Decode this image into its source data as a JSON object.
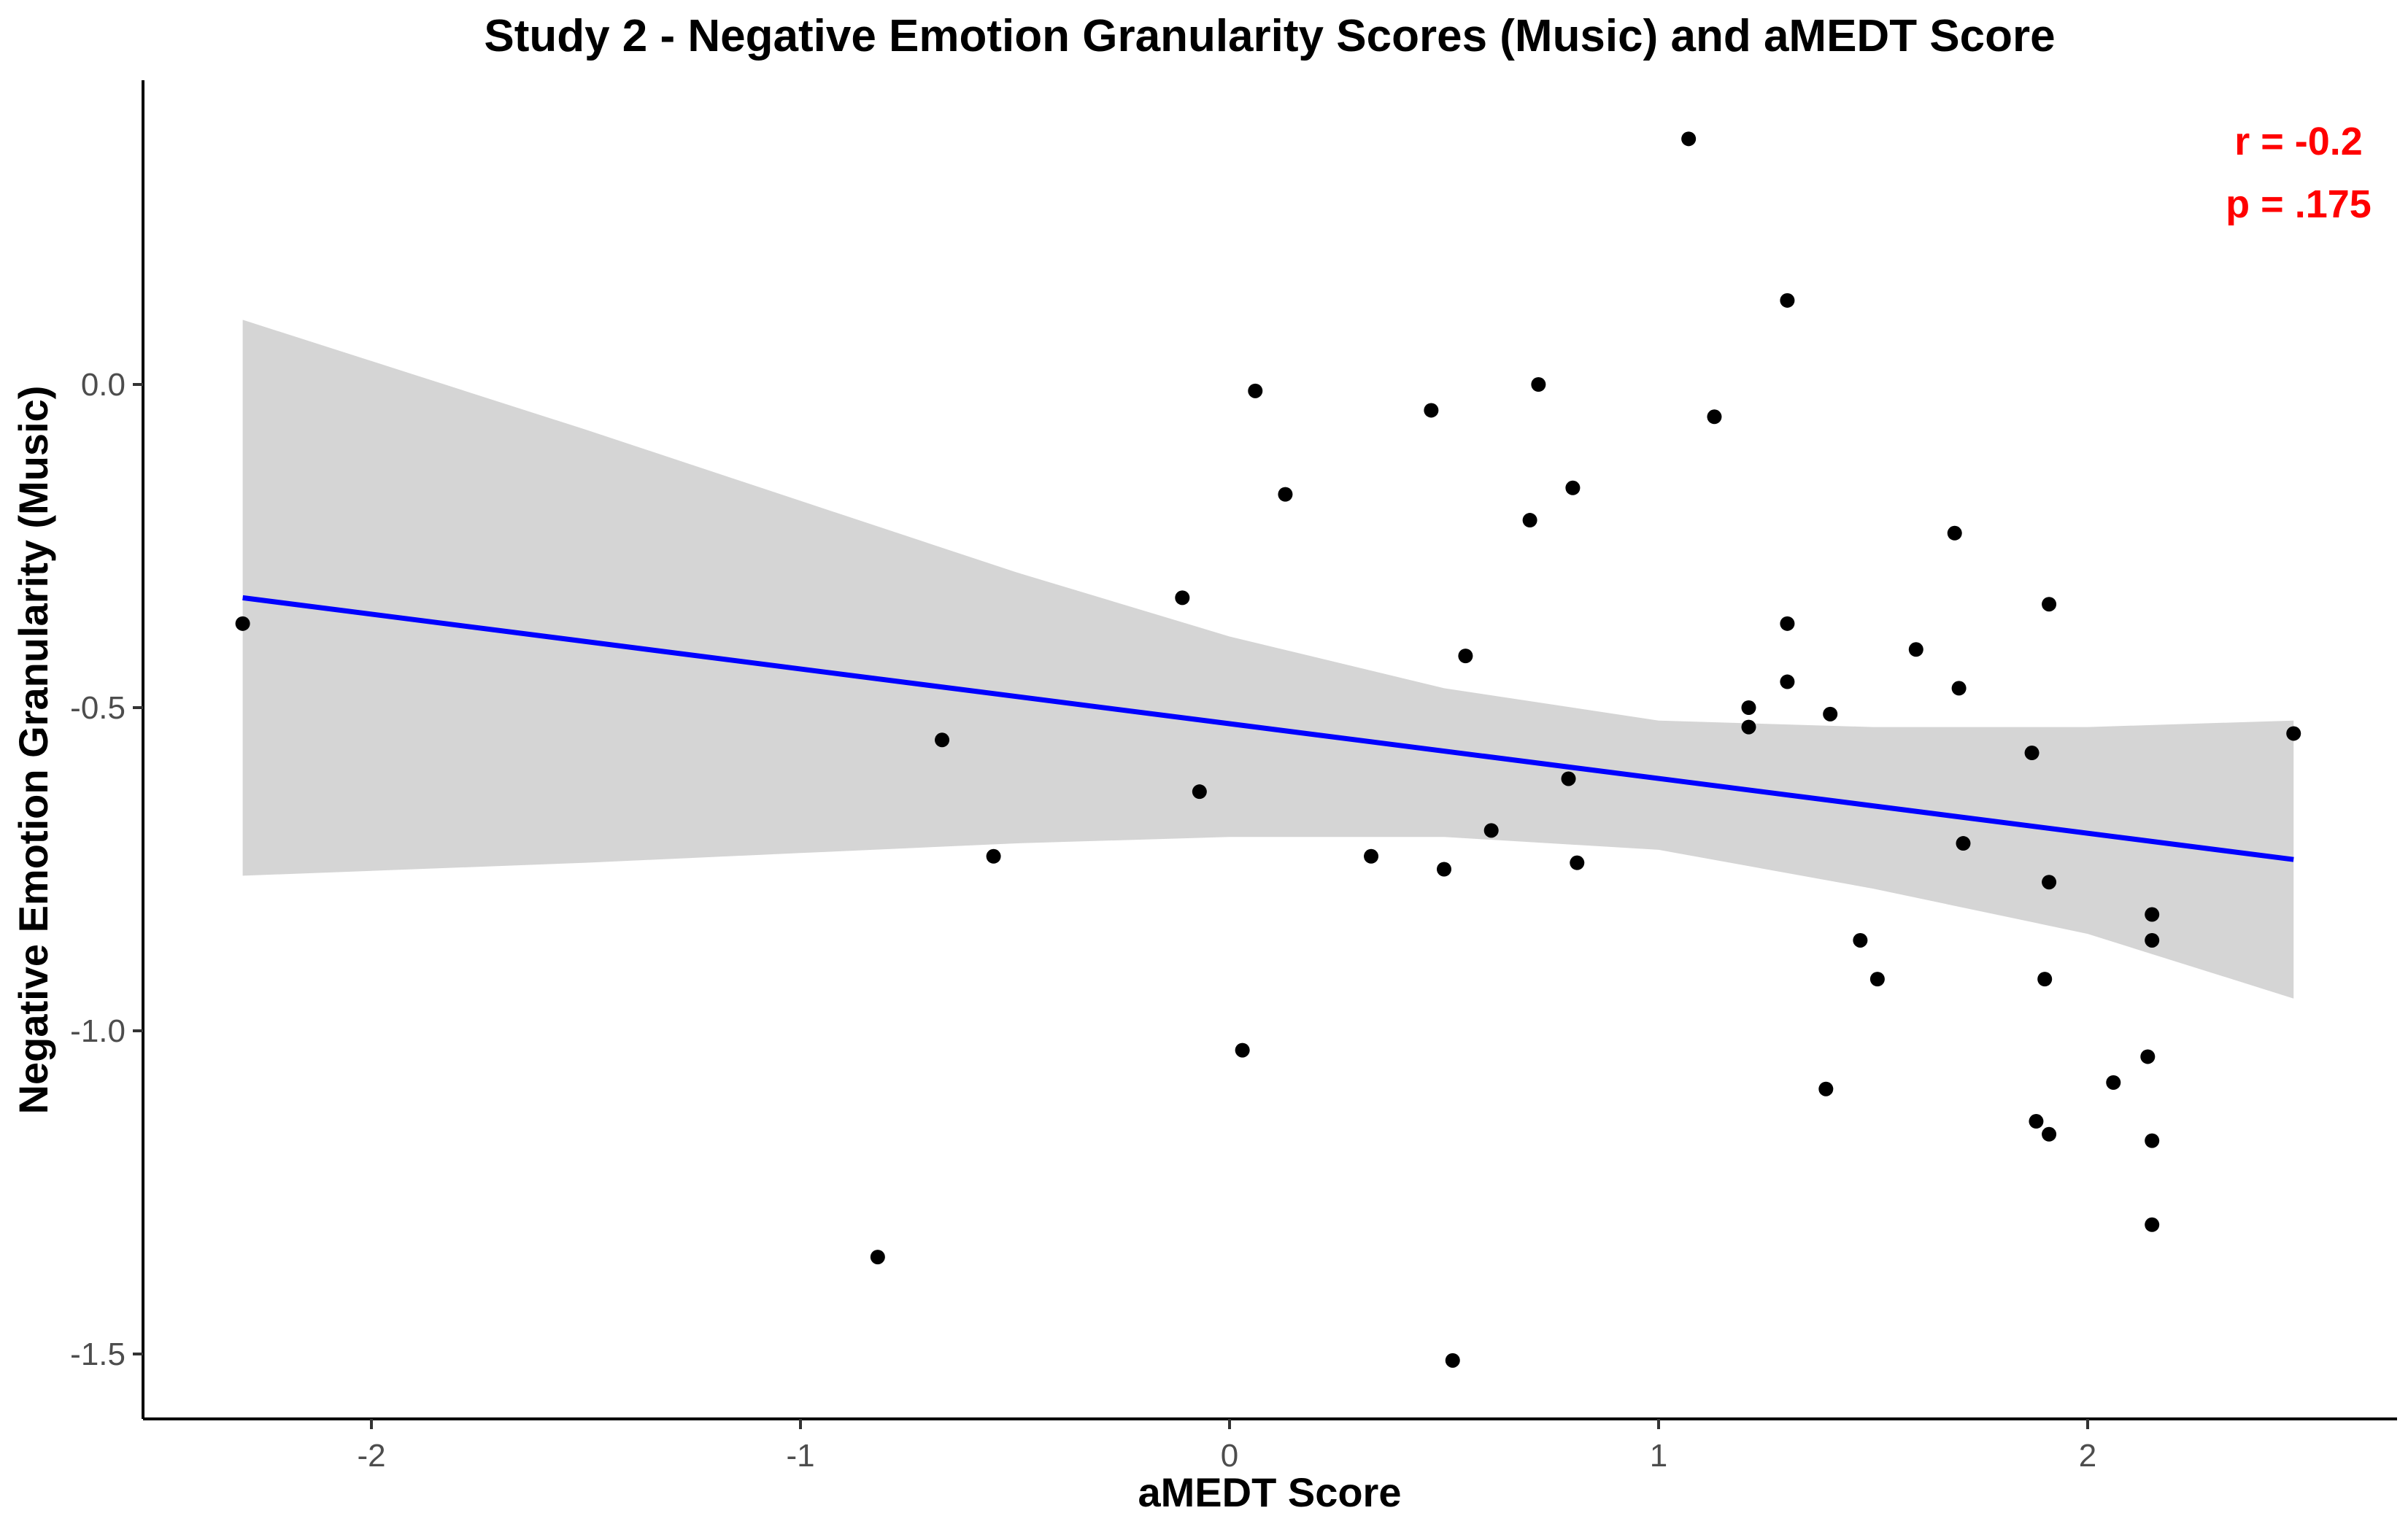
{
  "chart_data": {
    "type": "scatter",
    "title": "Study 2 - Negative Emotion Granularity Scores (Music) and aMEDT Score",
    "xlabel": "aMEDT Score",
    "ylabel": "Negative Emotion Granularity (Music)",
    "xlim": [
      -2.55,
      2.72
    ],
    "ylim": [
      -1.6,
      0.47
    ],
    "xticks": [
      {
        "value": -2,
        "label": "-2"
      },
      {
        "value": -1,
        "label": "-1"
      },
      {
        "value": 0,
        "label": "0"
      },
      {
        "value": 1,
        "label": "1"
      },
      {
        "value": 2,
        "label": "2"
      }
    ],
    "yticks": [
      {
        "value": 0.0,
        "label": "0.0"
      },
      {
        "value": -0.5,
        "label": "-0.5"
      },
      {
        "value": -1.0,
        "label": "-1.0"
      },
      {
        "value": -1.5,
        "label": "-1.5"
      }
    ],
    "grid": false,
    "points": [
      {
        "x": -2.3,
        "y": -0.37
      },
      {
        "x": -0.67,
        "y": -0.55
      },
      {
        "x": -0.55,
        "y": -0.73
      },
      {
        "x": -0.82,
        "y": -1.35
      },
      {
        "x": -0.11,
        "y": -0.33
      },
      {
        "x": -0.07,
        "y": -0.63
      },
      {
        "x": 0.03,
        "y": -1.03
      },
      {
        "x": 0.06,
        "y": -0.01
      },
      {
        "x": 0.13,
        "y": -0.17
      },
      {
        "x": 0.33,
        "y": -0.73
      },
      {
        "x": 0.47,
        "y": -0.04
      },
      {
        "x": 0.5,
        "y": -0.75
      },
      {
        "x": 0.52,
        "y": -1.51
      },
      {
        "x": 0.55,
        "y": -0.42
      },
      {
        "x": 0.61,
        "y": -0.69
      },
      {
        "x": 0.7,
        "y": -0.21
      },
      {
        "x": 0.72,
        "y": 0.0
      },
      {
        "x": 0.79,
        "y": -0.61
      },
      {
        "x": 0.8,
        "y": -0.16
      },
      {
        "x": 0.81,
        "y": -0.74
      },
      {
        "x": 1.07,
        "y": 0.38
      },
      {
        "x": 1.13,
        "y": -0.05
      },
      {
        "x": 1.21,
        "y": -0.5
      },
      {
        "x": 1.21,
        "y": -0.53
      },
      {
        "x": 1.3,
        "y": 0.13
      },
      {
        "x": 1.3,
        "y": -0.37
      },
      {
        "x": 1.3,
        "y": -0.46
      },
      {
        "x": 1.39,
        "y": -1.09
      },
      {
        "x": 1.4,
        "y": -0.51
      },
      {
        "x": 1.47,
        "y": -0.86
      },
      {
        "x": 1.51,
        "y": -0.92
      },
      {
        "x": 1.6,
        "y": -0.41
      },
      {
        "x": 1.69,
        "y": -0.23
      },
      {
        "x": 1.7,
        "y": -0.47
      },
      {
        "x": 1.71,
        "y": -0.71
      },
      {
        "x": 1.87,
        "y": -0.57
      },
      {
        "x": 1.88,
        "y": -1.14
      },
      {
        "x": 1.9,
        "y": -0.92
      },
      {
        "x": 1.91,
        "y": -0.34
      },
      {
        "x": 1.91,
        "y": -0.77
      },
      {
        "x": 1.91,
        "y": -1.16
      },
      {
        "x": 2.06,
        "y": -1.08
      },
      {
        "x": 2.14,
        "y": -1.04
      },
      {
        "x": 2.15,
        "y": -0.82
      },
      {
        "x": 2.15,
        "y": -0.86
      },
      {
        "x": 2.15,
        "y": -1.17
      },
      {
        "x": 2.15,
        "y": -1.3
      },
      {
        "x": 2.48,
        "y": -0.54
      }
    ],
    "regression_line": {
      "x": [
        -2.3,
        2.48
      ],
      "y": [
        -0.33,
        -0.735
      ],
      "color": "#0000FF"
    },
    "confidence_band": {
      "color": "#D5D5D5",
      "x": [
        -2.3,
        -1.5,
        -1.0,
        -0.5,
        0.0,
        0.5,
        1.0,
        1.5,
        2.0,
        2.48
      ],
      "upper": [
        0.1,
        -0.07,
        -0.18,
        -0.29,
        -0.39,
        -0.47,
        -0.52,
        -0.53,
        -0.53,
        -0.52
      ],
      "lower": [
        -0.76,
        -0.74,
        -0.725,
        -0.71,
        -0.7,
        -0.7,
        -0.72,
        -0.78,
        -0.85,
        -0.95
      ]
    },
    "annotations": [
      {
        "text": "r = -0.2",
        "color": "#FF0000"
      },
      {
        "text": "p = .175",
        "color": "#FF0000"
      }
    ]
  }
}
